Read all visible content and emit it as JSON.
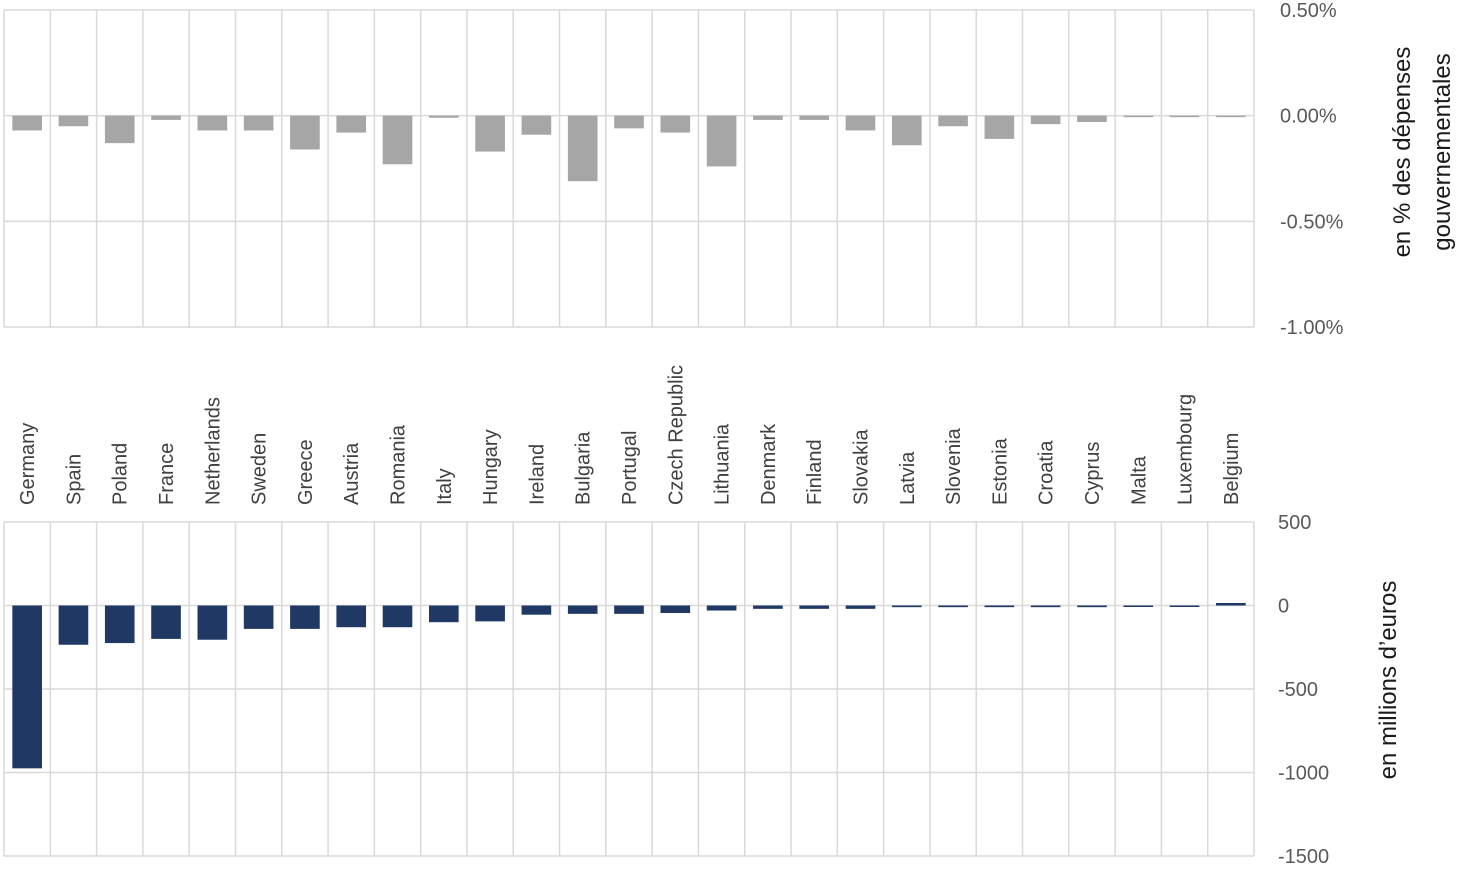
{
  "chart_data": [
    {
      "type": "bar",
      "ylabel": "en % des dépenses gouvernementales",
      "ylabel_lines": [
        "en % des dépenses",
        "gouvernementales"
      ],
      "ylim": [
        -1.0,
        0.5
      ],
      "yticks": [
        0.5,
        0.0,
        -0.5,
        -1.0
      ],
      "ytick_labels": [
        "0.50%",
        "0.00%",
        "-0.50%",
        "-1.00%"
      ],
      "grid": true,
      "y_axis_side": "right",
      "bar_color": "#a6a6a6",
      "categories": [
        "Germany",
        "Spain",
        "Poland",
        "France",
        "Netherlands",
        "Sweden",
        "Greece",
        "Austria",
        "Romania",
        "Italy",
        "Hungary",
        "Ireland",
        "Bulgaria",
        "Portugal",
        "Czech Republic",
        "Lithuania",
        "Denmark",
        "Finland",
        "Slovakia",
        "Latvia",
        "Slovenia",
        "Estonia",
        "Croatia",
        "Cyprus",
        "Malta",
        "Luxembourg",
        "Belgium"
      ],
      "values": [
        -0.07,
        -0.05,
        -0.13,
        -0.02,
        -0.07,
        -0.07,
        -0.16,
        -0.08,
        -0.23,
        -0.01,
        -0.17,
        -0.09,
        -0.31,
        -0.06,
        -0.08,
        -0.24,
        -0.02,
        -0.02,
        -0.07,
        -0.14,
        -0.05,
        -0.11,
        -0.04,
        -0.03,
        -0.005,
        -0.005,
        -0.005
      ]
    },
    {
      "type": "bar",
      "ylabel": "en millions d’euros",
      "ylim": [
        -1500,
        500
      ],
      "yticks": [
        500,
        0,
        -500,
        -1000,
        -1500
      ],
      "ytick_labels": [
        "500",
        "0",
        "-500",
        "-1000",
        "-1500"
      ],
      "grid": true,
      "y_axis_side": "right",
      "bar_color": "#1f3864",
      "categories": [
        "Germany",
        "Spain",
        "Poland",
        "France",
        "Netherlands",
        "Sweden",
        "Greece",
        "Austria",
        "Romania",
        "Italy",
        "Hungary",
        "Ireland",
        "Bulgaria",
        "Portugal",
        "Czech Republic",
        "Lithuania",
        "Denmark",
        "Finland",
        "Slovakia",
        "Latvia",
        "Slovenia",
        "Estonia",
        "Croatia",
        "Cyprus",
        "Malta",
        "Luxembourg",
        "Belgium"
      ],
      "values": [
        -975,
        -235,
        -225,
        -200,
        -205,
        -140,
        -140,
        -130,
        -130,
        -100,
        -95,
        -55,
        -50,
        -50,
        -45,
        -30,
        -20,
        -20,
        -20,
        -10,
        -10,
        -10,
        -10,
        -10,
        -2,
        -2,
        15
      ]
    }
  ]
}
